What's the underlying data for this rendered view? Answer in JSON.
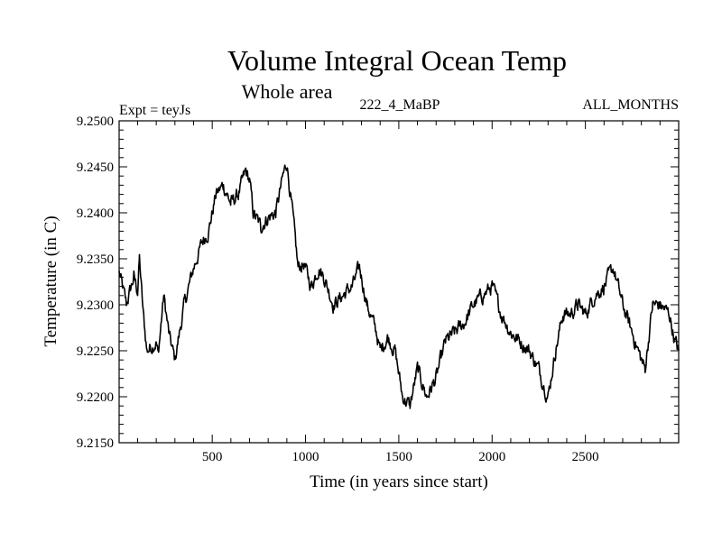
{
  "chart_data": {
    "type": "line",
    "title": "Volume Integral Ocean Temp",
    "subtitle": "Whole area",
    "experiment_label": "Expt = teyJs",
    "run_label": "222_4_MaBP",
    "period_label": "ALL_MONTHS",
    "xlabel": "Time (in years since start)",
    "ylabel": "Temperature (in C)",
    "xlim": [
      1,
      3000
    ],
    "ylim": [
      9.215,
      9.25
    ],
    "x_ticks": [
      500,
      1000,
      1500,
      2000,
      2500
    ],
    "y_ticks": [
      "9.2150",
      "9.2200",
      "9.2250",
      "9.2300",
      "9.2350",
      "9.2400",
      "9.2450",
      "9.2500"
    ],
    "grid": false,
    "series": [
      {
        "name": "Volume integral ocean temperature",
        "color": "#000000",
        "anchors": [
          [
            1,
            9.2335
          ],
          [
            40,
            9.23
          ],
          [
            80,
            9.233
          ],
          [
            100,
            9.2315
          ],
          [
            110,
            9.235
          ],
          [
            130,
            9.229
          ],
          [
            150,
            9.225
          ],
          [
            200,
            9.226
          ],
          [
            210,
            9.2245
          ],
          [
            240,
            9.231
          ],
          [
            270,
            9.2265
          ],
          [
            300,
            9.224
          ],
          [
            350,
            9.23
          ],
          [
            400,
            9.234
          ],
          [
            450,
            9.237
          ],
          [
            480,
            9.238
          ],
          [
            520,
            9.242
          ],
          [
            560,
            9.243
          ],
          [
            600,
            9.241
          ],
          [
            640,
            9.242
          ],
          [
            680,
            9.2445
          ],
          [
            700,
            9.2435
          ],
          [
            720,
            9.24
          ],
          [
            760,
            9.2385
          ],
          [
            800,
            9.2395
          ],
          [
            840,
            9.24
          ],
          [
            880,
            9.244
          ],
          [
            900,
            9.2455
          ],
          [
            930,
            9.24
          ],
          [
            960,
            9.234
          ],
          [
            990,
            9.2345
          ],
          [
            1030,
            9.232
          ],
          [
            1070,
            9.234
          ],
          [
            1100,
            9.233
          ],
          [
            1150,
            9.23
          ],
          [
            1200,
            9.231
          ],
          [
            1250,
            9.232
          ],
          [
            1290,
            9.234
          ],
          [
            1330,
            9.23
          ],
          [
            1380,
            9.227
          ],
          [
            1400,
            9.225
          ],
          [
            1440,
            9.2265
          ],
          [
            1480,
            9.225
          ],
          [
            1520,
            9.22
          ],
          [
            1560,
            9.219
          ],
          [
            1600,
            9.223
          ],
          [
            1650,
            9.22
          ],
          [
            1700,
            9.222
          ],
          [
            1750,
            9.226
          ],
          [
            1800,
            9.227
          ],
          [
            1850,
            9.228
          ],
          [
            1900,
            9.23
          ],
          [
            1950,
            9.231
          ],
          [
            2000,
            9.232
          ],
          [
            2050,
            9.229
          ],
          [
            2100,
            9.227
          ],
          [
            2150,
            9.226
          ],
          [
            2200,
            9.225
          ],
          [
            2250,
            9.223
          ],
          [
            2300,
            9.22
          ],
          [
            2340,
            9.225
          ],
          [
            2380,
            9.229
          ],
          [
            2420,
            9.229
          ],
          [
            2460,
            9.23
          ],
          [
            2500,
            9.229
          ],
          [
            2550,
            9.231
          ],
          [
            2600,
            9.232
          ],
          [
            2650,
            9.234
          ],
          [
            2700,
            9.23
          ],
          [
            2750,
            9.227
          ],
          [
            2800,
            9.224
          ],
          [
            2820,
            9.223
          ],
          [
            2860,
            9.23
          ],
          [
            2900,
            9.23
          ],
          [
            2950,
            9.229
          ],
          [
            2980,
            9.226
          ],
          [
            3000,
            9.225
          ]
        ],
        "noise_amplitude": 0.0008
      }
    ]
  }
}
